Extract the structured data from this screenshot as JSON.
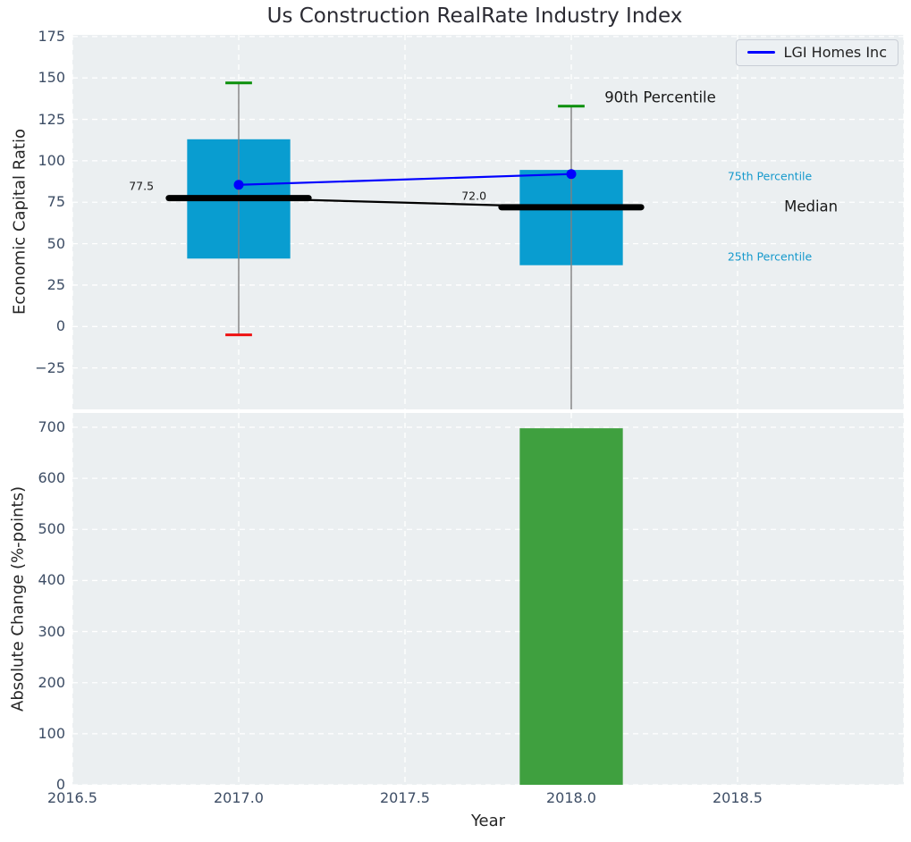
{
  "title": "Us Construction RealRate Industry Index",
  "legend": {
    "label": "LGI Homes Inc"
  },
  "colors": {
    "figure_bg": "#ffffff",
    "axes_bg": "#ebeff1",
    "grid": "#ffffff",
    "tick_label": "#3d4d65",
    "text": "#262626",
    "box_fill": "#099dd0",
    "bar_fill": "#3fa03f",
    "company_line": "#0000ff",
    "median_line": "#000000",
    "whisker": "#808080",
    "cap_high": "#0a8f0a",
    "cap_low": "#ee1111",
    "accent_label": "#1599cc",
    "dark_label": "#1a1a1a"
  },
  "chart_data": [
    {
      "type": "boxplot",
      "title": "Us Construction RealRate Industry Index",
      "ylabel": "Economic Capital Ratio",
      "xlim": [
        2016.5,
        2019.0
      ],
      "ylim": [
        -50,
        176
      ],
      "yticks": [
        175,
        150,
        125,
        100,
        75,
        50,
        25,
        0,
        -25
      ],
      "xgrid": [
        2016.5,
        2017.0,
        2017.5,
        2018.0,
        2018.5,
        2019.0
      ],
      "grid": true,
      "legend_position": "upper right",
      "box_width": 0.31,
      "median_seg_width": 0.42,
      "cap_width": 0.08,
      "boxes": [
        {
          "x": 2017.0,
          "p90": 147,
          "p75": 113,
          "median": 77.5,
          "p25": 41,
          "p10": -5,
          "p10_clipped": false
        },
        {
          "x": 2018.0,
          "p90": 133,
          "p75": 94.5,
          "median": 72.0,
          "p25": 37,
          "p10": -50,
          "p10_clipped": true
        }
      ],
      "company_series": {
        "name": "LGI Homes Inc",
        "x": [
          2017.0,
          2018.0
        ],
        "y": [
          85.5,
          92
        ]
      },
      "median_series": {
        "x": [
          2017.0,
          2018.0
        ],
        "y": [
          77.5,
          72.0
        ]
      },
      "annotations": [
        {
          "text": "90th Percentile",
          "x": 2018.1,
          "y": 138,
          "style": "dark",
          "size": 16.5
        },
        {
          "text": "75th Percentile",
          "x": 2018.47,
          "y": 91,
          "style": "accent",
          "size": 12.5
        },
        {
          "text": "Median",
          "x": 2018.64,
          "y": 72.5,
          "style": "dark",
          "size": 16.5
        },
        {
          "text": "25th Percentile",
          "x": 2018.47,
          "y": 42,
          "style": "accent",
          "size": 12.5
        },
        {
          "text": "77.5",
          "x": 2016.67,
          "y": 85,
          "style": "dark",
          "size": 12.5
        },
        {
          "text": "72.0",
          "x": 2017.67,
          "y": 79,
          "style": "dark",
          "size": 12.5
        }
      ]
    },
    {
      "type": "bar",
      "ylabel": "Absolute Change (%-points)",
      "xlabel": "Year",
      "xlim": [
        2016.5,
        2019.0
      ],
      "ylim": [
        0,
        728
      ],
      "yticks": [
        700,
        600,
        500,
        400,
        300,
        200,
        100,
        0
      ],
      "xgrid": [
        2016.5,
        2017.0,
        2017.5,
        2018.0,
        2018.5,
        2019.0
      ],
      "xticks": [
        2016.5,
        2017.0,
        2017.5,
        2018.0,
        2018.5
      ],
      "xtick_labels": [
        "2016.5",
        "2017.0",
        "2017.5",
        "2018.0",
        "2018.5"
      ],
      "grid": true,
      "bar_width": 0.31,
      "bars": [
        {
          "x": 2018.0,
          "value": 698
        }
      ]
    }
  ]
}
